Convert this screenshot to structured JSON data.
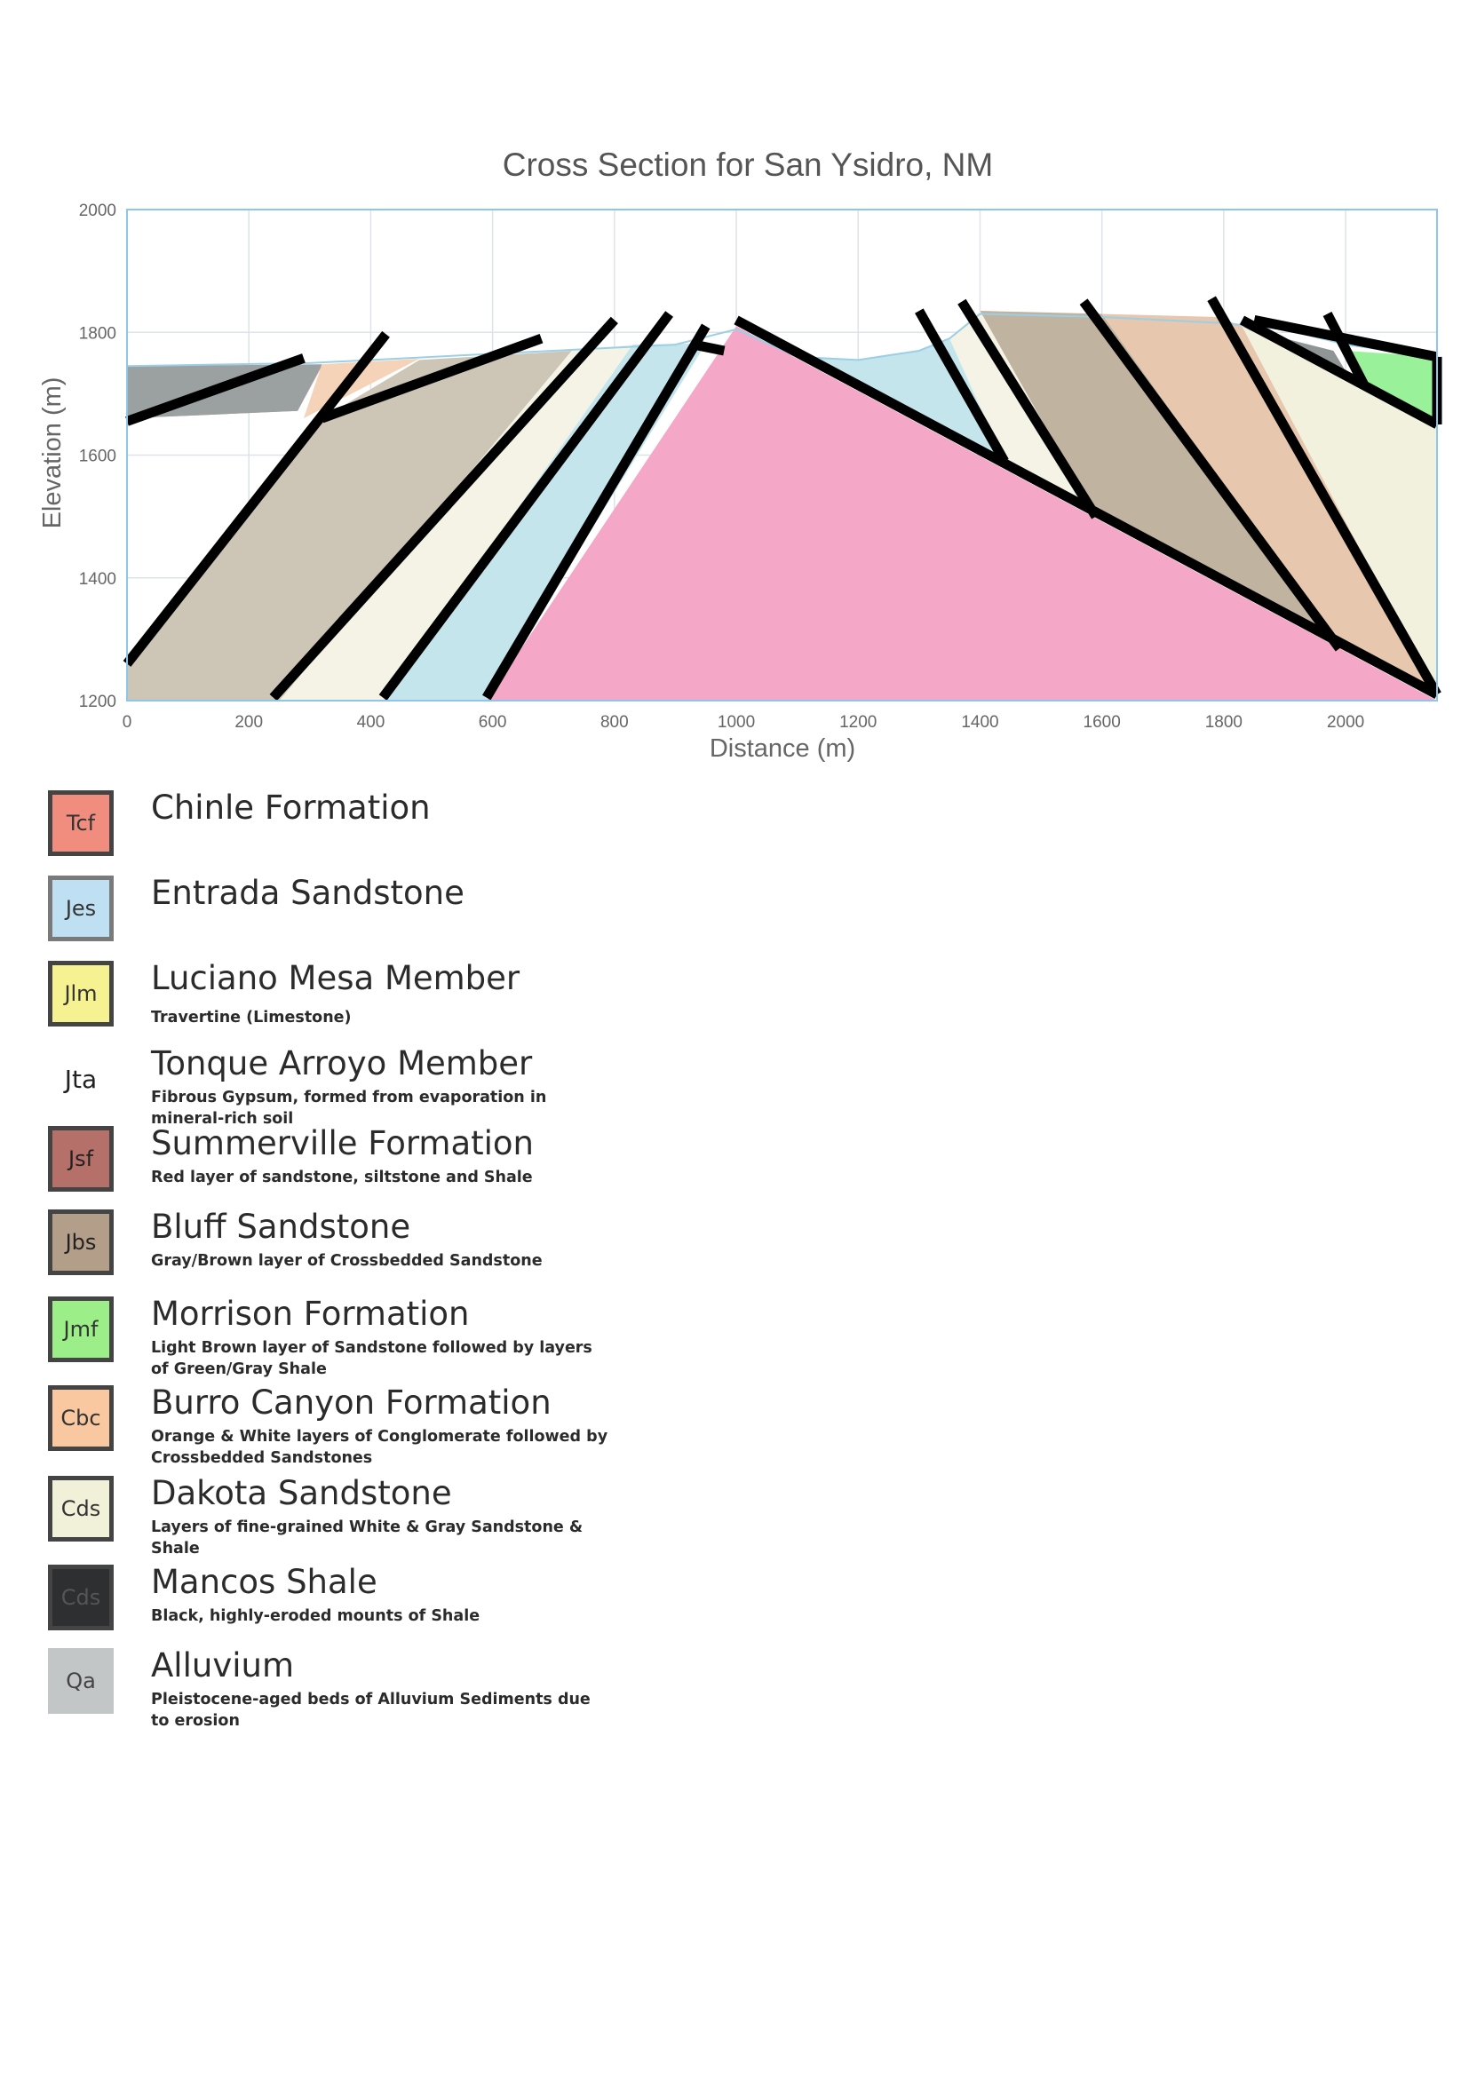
{
  "chart_data": {
    "type": "area",
    "title": "Cross Section for San Ysidro, NM",
    "xlabel": "Distance (m)",
    "ylabel": "Elevation (m)",
    "xlim": [
      0,
      2150
    ],
    "ylim": [
      1200,
      2000
    ],
    "xticks": [
      0,
      200,
      400,
      600,
      800,
      1000,
      1200,
      1400,
      1600,
      1800,
      2000
    ],
    "yticks": [
      1200,
      1400,
      1600,
      1800,
      2000
    ],
    "grid": true,
    "surface_profile": [
      [
        0,
        1745
      ],
      [
        300,
        1750
      ],
      [
        700,
        1770
      ],
      [
        800,
        1775
      ],
      [
        900,
        1780
      ],
      [
        1000,
        1805
      ],
      [
        1100,
        1760
      ],
      [
        1200,
        1755
      ],
      [
        1300,
        1770
      ],
      [
        1350,
        1790
      ],
      [
        1400,
        1830
      ],
      [
        1600,
        1825
      ],
      [
        1800,
        1815
      ],
      [
        1900,
        1805
      ],
      [
        2000,
        1780
      ],
      [
        2150,
        1760
      ]
    ],
    "units": [
      {
        "code": "Jsf",
        "color": "#c6a5a9",
        "polygon": [
          [
            0,
            1200
          ],
          [
            0,
            1660
          ],
          [
            120,
            1665
          ],
          [
            280,
            1672
          ],
          [
            320,
            1745
          ],
          [
            0,
            1745
          ],
          [
            0,
            1745
          ]
        ]
      },
      {
        "code": "Qa",
        "color": "#9aa1a0",
        "polygon": [
          [
            0,
            1660
          ],
          [
            0,
            1745
          ],
          [
            320,
            1748
          ],
          [
            280,
            1672
          ]
        ]
      },
      {
        "code": "Cbc",
        "color": "#f5d3b8",
        "polygon": [
          [
            320,
            1748
          ],
          [
            480,
            1757
          ],
          [
            290,
            1660
          ]
        ]
      },
      {
        "code": "Cds",
        "color": "#cdc6b6",
        "polygon": [
          [
            0,
            1200
          ],
          [
            0,
            1260
          ],
          [
            320,
            1660
          ],
          [
            480,
            1755
          ],
          [
            730,
            1770
          ],
          [
            250,
            1200
          ]
        ]
      },
      {
        "code": "Cds",
        "color": "#f4f3e6",
        "polygon": [
          [
            250,
            1200
          ],
          [
            730,
            1770
          ],
          [
            830,
            1780
          ],
          [
            420,
            1200
          ]
        ]
      },
      {
        "code": "Jes",
        "color": "#c5e5ed",
        "polygon": [
          [
            420,
            1200
          ],
          [
            830,
            1780
          ],
          [
            950,
            1782
          ],
          [
            590,
            1200
          ]
        ]
      },
      {
        "code": "Tcf",
        "color": "#f4a7c6",
        "polygon": [
          [
            590,
            1200
          ],
          [
            1000,
            1810
          ],
          [
            2150,
            1200
          ]
        ]
      },
      {
        "code": "Jes",
        "color": "#c5e5ed",
        "polygon": [
          [
            1000,
            1810
          ],
          [
            1100,
            1760
          ],
          [
            1200,
            1755
          ],
          [
            1300,
            1770
          ],
          [
            1350,
            1790
          ],
          [
            1440,
            1590
          ]
        ]
      },
      {
        "code": "Cds",
        "color": "#f4f3e6",
        "polygon": [
          [
            1350,
            1790
          ],
          [
            1400,
            1835
          ],
          [
            1590,
            1500
          ],
          [
            1440,
            1590
          ]
        ]
      },
      {
        "code": "Jbs",
        "color": "#c0b3a0",
        "polygon": [
          [
            1400,
            1835
          ],
          [
            1600,
            1830
          ],
          [
            1990,
            1285
          ],
          [
            1590,
            1500
          ]
        ]
      },
      {
        "code": "Cbc",
        "color": "#e7c7ae",
        "polygon": [
          [
            1600,
            1830
          ],
          [
            1790,
            1825
          ],
          [
            1830,
            1810
          ],
          [
            2150,
            1210
          ],
          [
            1990,
            1285
          ]
        ]
      },
      {
        "code": "Cds",
        "color": "#f2f1de",
        "polygon": [
          [
            1830,
            1810
          ],
          [
            2150,
            1650
          ],
          [
            2150,
            1210
          ]
        ]
      },
      {
        "code": "Cds",
        "color": "#8f9494",
        "polygon": [
          [
            1830,
            1810
          ],
          [
            2010,
            1720
          ],
          [
            1980,
            1770
          ],
          [
            1900,
            1790
          ]
        ]
      },
      {
        "code": "Jmf",
        "color": "#99f199",
        "polygon": [
          [
            2000,
            1770
          ],
          [
            2150,
            1760
          ],
          [
            2150,
            1660
          ],
          [
            2030,
            1710
          ]
        ]
      }
    ],
    "contacts": [
      [
        [
          0,
          1655
        ],
        [
          290,
          1758
        ]
      ],
      [
        [
          0,
          1260
        ],
        [
          425,
          1797
        ]
      ],
      [
        [
          320,
          1660
        ],
        [
          680,
          1790
        ]
      ],
      [
        [
          240,
          1205
        ],
        [
          800,
          1820
        ]
      ],
      [
        [
          420,
          1205
        ],
        [
          890,
          1830
        ]
      ],
      [
        [
          590,
          1205
        ],
        [
          950,
          1810
        ]
      ],
      [
        [
          930,
          1780
        ],
        [
          980,
          1770
        ]
      ],
      [
        [
          1000,
          1820
        ],
        [
          2150,
          1210
        ]
      ],
      [
        [
          1300,
          1835
        ],
        [
          1440,
          1590
        ]
      ],
      [
        [
          1370,
          1850
        ],
        [
          1590,
          1500
        ]
      ],
      [
        [
          1570,
          1850
        ],
        [
          1990,
          1285
        ]
      ],
      [
        [
          1780,
          1855
        ],
        [
          2150,
          1210
        ]
      ],
      [
        [
          1830,
          1820
        ],
        [
          2150,
          1650
        ]
      ],
      [
        [
          1850,
          1820
        ],
        [
          2150,
          1760
        ]
      ],
      [
        [
          2150,
          1760
        ],
        [
          2150,
          1650
        ]
      ],
      [
        [
          1970,
          1830
        ],
        [
          2030,
          1715
        ]
      ]
    ]
  },
  "legend": [
    {
      "code": "Tcf",
      "name": "Chinle Formation",
      "desc": "",
      "color": "#f08d7e",
      "text_color": "#333333"
    },
    {
      "code": "Jes",
      "name": "Entrada Sandstone",
      "desc": "",
      "color": "#bfe0f2",
      "text_color": "#333333"
    },
    {
      "code": "Jlm",
      "name": "Luciano Mesa Member",
      "desc": "Travertine (Limestone)",
      "color": "#f7f291",
      "text_color": "#333333"
    },
    {
      "code": "Jta",
      "name": "Tonque Arroyo Member",
      "desc": "Fibrous Gypsum, formed from evaporation in mineral-rich soil",
      "color": "#ffffff",
      "text_color": "#222222"
    },
    {
      "code": "Jsf",
      "name": "Summerville Formation",
      "desc": "Red layer of sandstone, siltstone and Shale",
      "color": "#b5706a",
      "text_color": "#222222"
    },
    {
      "code": "Jbs",
      "name": "Bluff Sandstone",
      "desc": "Gray/Brown layer of Crossbedded Sandstone",
      "color": "#b39e89",
      "text_color": "#222222"
    },
    {
      "code": "Jmf",
      "name": "Morrison Formation",
      "desc": "Light Brown layer of Sandstone followed by layers of Green/Gray Shale",
      "color": "#9cef88",
      "text_color": "#333333"
    },
    {
      "code": "Cbc",
      "name": "Burro Canyon Formation",
      "desc": "Orange & White layers of Conglomerate followed by Crossbedded Sandstones",
      "color": "#f9c8a0",
      "text_color": "#333333"
    },
    {
      "code": "Cds",
      "name": "Dakota Sandstone",
      "desc": "Layers of fine-grained White & Gray Sandstone & Shale",
      "color": "#f1f0d8",
      "text_color": "#333333"
    },
    {
      "code": "Cds",
      "name": "Mancos Shale",
      "desc": "Black, highly-eroded mounts of Shale",
      "color": "#2e2f30",
      "text_color": "#555555"
    },
    {
      "code": "Qa",
      "name": "Alluvium",
      "desc": "Pleistocene-aged beds of Alluvium Sediments due to erosion",
      "color": "#c3c6c7",
      "text_color": "#444444"
    }
  ]
}
